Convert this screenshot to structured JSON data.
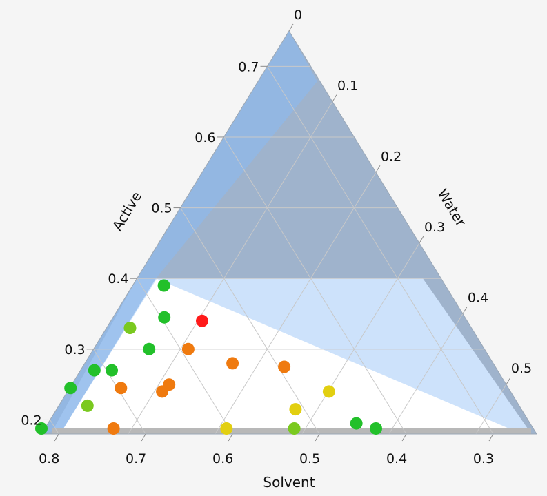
{
  "chart_data": {
    "type": "ternary",
    "axes": {
      "active": {
        "label": "Active",
        "ticks": [
          "0.2",
          "0.3",
          "0.4",
          "0.5",
          "0.6",
          "0.7"
        ],
        "tick_values": [
          0.2,
          0.3,
          0.4,
          0.5,
          0.6,
          0.7
        ]
      },
      "water": {
        "label": "Water",
        "ticks": [
          "0",
          "0.1",
          "0.2",
          "0.3",
          "0.4",
          "0.5"
        ],
        "tick_values": [
          0,
          0.1,
          0.2,
          0.3,
          0.4,
          0.5
        ]
      },
      "solvent": {
        "label": "Solvent",
        "ticks": [
          "0.8",
          "0.7",
          "0.6",
          "0.5",
          "0.4",
          "0.3"
        ],
        "tick_values": [
          0.8,
          0.7,
          0.6,
          0.5,
          0.4,
          0.3
        ]
      }
    },
    "ranges": {
      "active": [
        0.18,
        0.75
      ],
      "water": [
        0,
        0.57
      ],
      "solvent": [
        0.25,
        0.82
      ]
    },
    "grid": true,
    "regions": [
      {
        "name": "dark",
        "color": "#9fb3cc"
      },
      {
        "name": "light",
        "color": "#cde2fb"
      },
      {
        "name": "blue-band",
        "color": "#8fb8ea"
      },
      {
        "name": "floor",
        "color": "#b8b8b8"
      }
    ],
    "points": [
      {
        "active": 0.39,
        "water": 0.036,
        "solvent": 0.574,
        "color": "#22c02a"
      },
      {
        "active": 0.345,
        "water": 0.059,
        "solvent": 0.596,
        "color": "#22c02a"
      },
      {
        "active": 0.33,
        "water": 0.027,
        "solvent": 0.643,
        "color": "#7ac91f"
      },
      {
        "active": 0.34,
        "water": 0.105,
        "solvent": 0.555,
        "color": "#ff1a1a"
      },
      {
        "active": 0.3,
        "water": 0.064,
        "solvent": 0.636,
        "color": "#22c02a"
      },
      {
        "active": 0.3,
        "water": 0.109,
        "solvent": 0.591,
        "color": "#ef7a0f"
      },
      {
        "active": 0.28,
        "water": 0.17,
        "solvent": 0.55,
        "color": "#ef7a0f"
      },
      {
        "active": 0.275,
        "water": 0.232,
        "solvent": 0.493,
        "color": "#ef7a0f"
      },
      {
        "active": 0.27,
        "water": 0.016,
        "solvent": 0.714,
        "color": "#22c02a"
      },
      {
        "active": 0.27,
        "water": 0.036,
        "solvent": 0.694,
        "color": "#22c02a"
      },
      {
        "active": 0.245,
        "water": 0.001,
        "solvent": 0.754,
        "color": "#22c02a"
      },
      {
        "active": 0.245,
        "water": 0.059,
        "solvent": 0.696,
        "color": "#ef7a0f"
      },
      {
        "active": 0.25,
        "water": 0.112,
        "solvent": 0.638,
        "color": "#ef7a0f"
      },
      {
        "active": 0.24,
        "water": 0.109,
        "solvent": 0.651,
        "color": "#ef7a0f"
      },
      {
        "active": 0.24,
        "water": 0.301,
        "solvent": 0.459,
        "color": "#e2cf10"
      },
      {
        "active": 0.22,
        "water": 0.033,
        "solvent": 0.747,
        "color": "#7ac91f"
      },
      {
        "active": 0.215,
        "water": 0.275,
        "solvent": 0.51,
        "color": "#e2cf10"
      },
      {
        "active": 0.195,
        "water": 0.355,
        "solvent": 0.45,
        "color": "#22c02a"
      },
      {
        "active": 0.18,
        "water": 0,
        "solvent": 0.82,
        "color": "#22c02a"
      },
      {
        "active": 0.18,
        "water": 0.083,
        "solvent": 0.737,
        "color": "#ef7a0f"
      },
      {
        "active": 0.18,
        "water": 0.213,
        "solvent": 0.607,
        "color": "#e2cf10"
      },
      {
        "active": 0.18,
        "water": 0.291,
        "solvent": 0.529,
        "color": "#7ac91f"
      },
      {
        "active": 0.18,
        "water": 0.385,
        "solvent": 0.435,
        "color": "#22c02a"
      }
    ]
  }
}
